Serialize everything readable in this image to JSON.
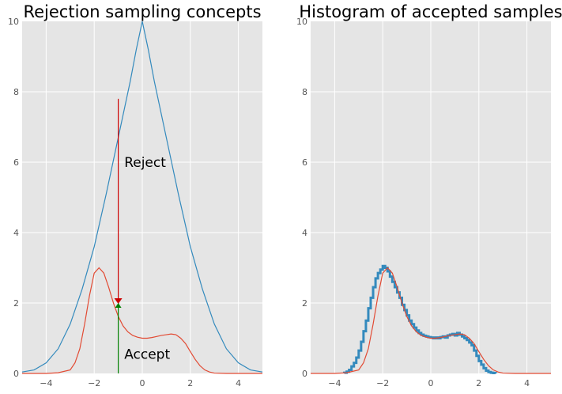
{
  "chart_data": [
    {
      "type": "line",
      "title": "Rejection sampling concepts",
      "xlabel": "",
      "ylabel": "",
      "xlim": [
        -5,
        5
      ],
      "ylim": [
        0,
        10
      ],
      "xticks": [
        -4,
        -2,
        0,
        2,
        4
      ],
      "yticks": [
        0,
        2,
        4,
        6,
        8,
        10
      ],
      "x_tick_labels": [
        "−4",
        "−2",
        "0",
        "2",
        "4"
      ],
      "y_tick_labels": [
        "0",
        "2",
        "4",
        "6",
        "8",
        "10"
      ],
      "grid": true,
      "colors": {
        "proposal": "#348abd",
        "target": "#e24a33",
        "reject": "#cc0000",
        "accept": "#008000",
        "background": "#e5e5e5"
      },
      "series": [
        {
          "role": "proposal",
          "x": [
            -5,
            -4.5,
            -4,
            -3.5,
            -3,
            -2.5,
            -2,
            -1.5,
            -1,
            -0.75,
            -0.5,
            -0.25,
            0,
            0.25,
            0.5,
            0.75,
            1,
            1.5,
            2,
            2.5,
            3,
            3.5,
            4,
            4.5,
            5
          ],
          "y": [
            0.04,
            0.1,
            0.3,
            0.7,
            1.4,
            2.4,
            3.6,
            5.1,
            6.7,
            7.5,
            8.3,
            9.2,
            10,
            9.2,
            8.3,
            7.5,
            6.7,
            5.1,
            3.6,
            2.4,
            1.4,
            0.7,
            0.3,
            0.1,
            0.04
          ]
        },
        {
          "role": "target",
          "x": [
            -5,
            -4,
            -3.5,
            -3,
            -2.8,
            -2.6,
            -2.4,
            -2.2,
            -2,
            -1.8,
            -1.6,
            -1.4,
            -1.2,
            -1,
            -0.8,
            -0.6,
            -0.4,
            -0.2,
            0,
            0.2,
            0.4,
            0.6,
            0.8,
            1,
            1.2,
            1.4,
            1.6,
            1.8,
            2,
            2.2,
            2.4,
            2.6,
            2.8,
            3,
            3.5,
            4,
            5
          ],
          "y": [
            0,
            0,
            0.02,
            0.1,
            0.3,
            0.7,
            1.4,
            2.2,
            2.85,
            3.0,
            2.85,
            2.45,
            2.0,
            1.62,
            1.35,
            1.18,
            1.08,
            1.03,
            1.0,
            1.0,
            1.02,
            1.05,
            1.08,
            1.1,
            1.12,
            1.1,
            1.0,
            0.85,
            0.62,
            0.4,
            0.22,
            0.1,
            0.04,
            0.01,
            0,
            0,
            0
          ]
        }
      ],
      "reject_line": {
        "x": -1,
        "y_from": 7.8,
        "y_to": 2.0
      },
      "accept_line": {
        "x": -1,
        "y_from": 0,
        "y_to": 2.0
      },
      "annotations": [
        {
          "text": "Reject",
          "x": -0.75,
          "y": 6.0
        },
        {
          "text": "Accept",
          "x": -0.75,
          "y": 0.55
        }
      ]
    },
    {
      "type": "line",
      "title": "Histogram of accepted samples",
      "xlabel": "",
      "ylabel": "",
      "xlim": [
        -5,
        5
      ],
      "ylim": [
        0,
        10
      ],
      "xticks": [
        -4,
        -2,
        0,
        2,
        4
      ],
      "yticks": [
        0,
        2,
        4,
        6,
        8,
        10
      ],
      "x_tick_labels": [
        "−4",
        "−2",
        "0",
        "2",
        "4"
      ],
      "y_tick_labels": [
        "0",
        "2",
        "4",
        "6",
        "8",
        "10"
      ],
      "grid": true,
      "colors": {
        "histogram": "#348abd",
        "target": "#e24a33",
        "background": "#e5e5e5"
      },
      "histogram": {
        "bin_start": -3.6,
        "bin_width": 0.1,
        "values": [
          0.02,
          0.05,
          0.1,
          0.2,
          0.3,
          0.45,
          0.65,
          0.9,
          1.2,
          1.5,
          1.85,
          2.15,
          2.45,
          2.7,
          2.85,
          2.95,
          3.05,
          3.0,
          2.9,
          2.75,
          2.6,
          2.45,
          2.3,
          2.15,
          1.95,
          1.8,
          1.65,
          1.5,
          1.4,
          1.3,
          1.22,
          1.15,
          1.1,
          1.07,
          1.05,
          1.03,
          1.02,
          1.0,
          1.02,
          1.0,
          1.03,
          1.05,
          1.02,
          1.08,
          1.1,
          1.12,
          1.08,
          1.15,
          1.1,
          1.05,
          1.0,
          0.95,
          0.88,
          0.8,
          0.65,
          0.5,
          0.35,
          0.25,
          0.15,
          0.08,
          0.04,
          0.02,
          0.01
        ]
      },
      "series": [
        {
          "role": "target",
          "x": [
            -5,
            -4,
            -3.5,
            -3,
            -2.8,
            -2.6,
            -2.4,
            -2.2,
            -2,
            -1.8,
            -1.6,
            -1.4,
            -1.2,
            -1,
            -0.8,
            -0.6,
            -0.4,
            -0.2,
            0,
            0.2,
            0.4,
            0.6,
            0.8,
            1,
            1.2,
            1.4,
            1.6,
            1.8,
            2,
            2.2,
            2.4,
            2.6,
            2.8,
            3,
            3.5,
            4,
            5
          ],
          "y": [
            0,
            0,
            0.02,
            0.1,
            0.3,
            0.7,
            1.4,
            2.2,
            2.85,
            3.0,
            2.85,
            2.45,
            2.0,
            1.62,
            1.35,
            1.18,
            1.08,
            1.03,
            1.0,
            1.0,
            1.02,
            1.05,
            1.08,
            1.1,
            1.12,
            1.1,
            1.0,
            0.85,
            0.62,
            0.4,
            0.22,
            0.1,
            0.04,
            0.01,
            0,
            0,
            0
          ]
        }
      ]
    }
  ]
}
